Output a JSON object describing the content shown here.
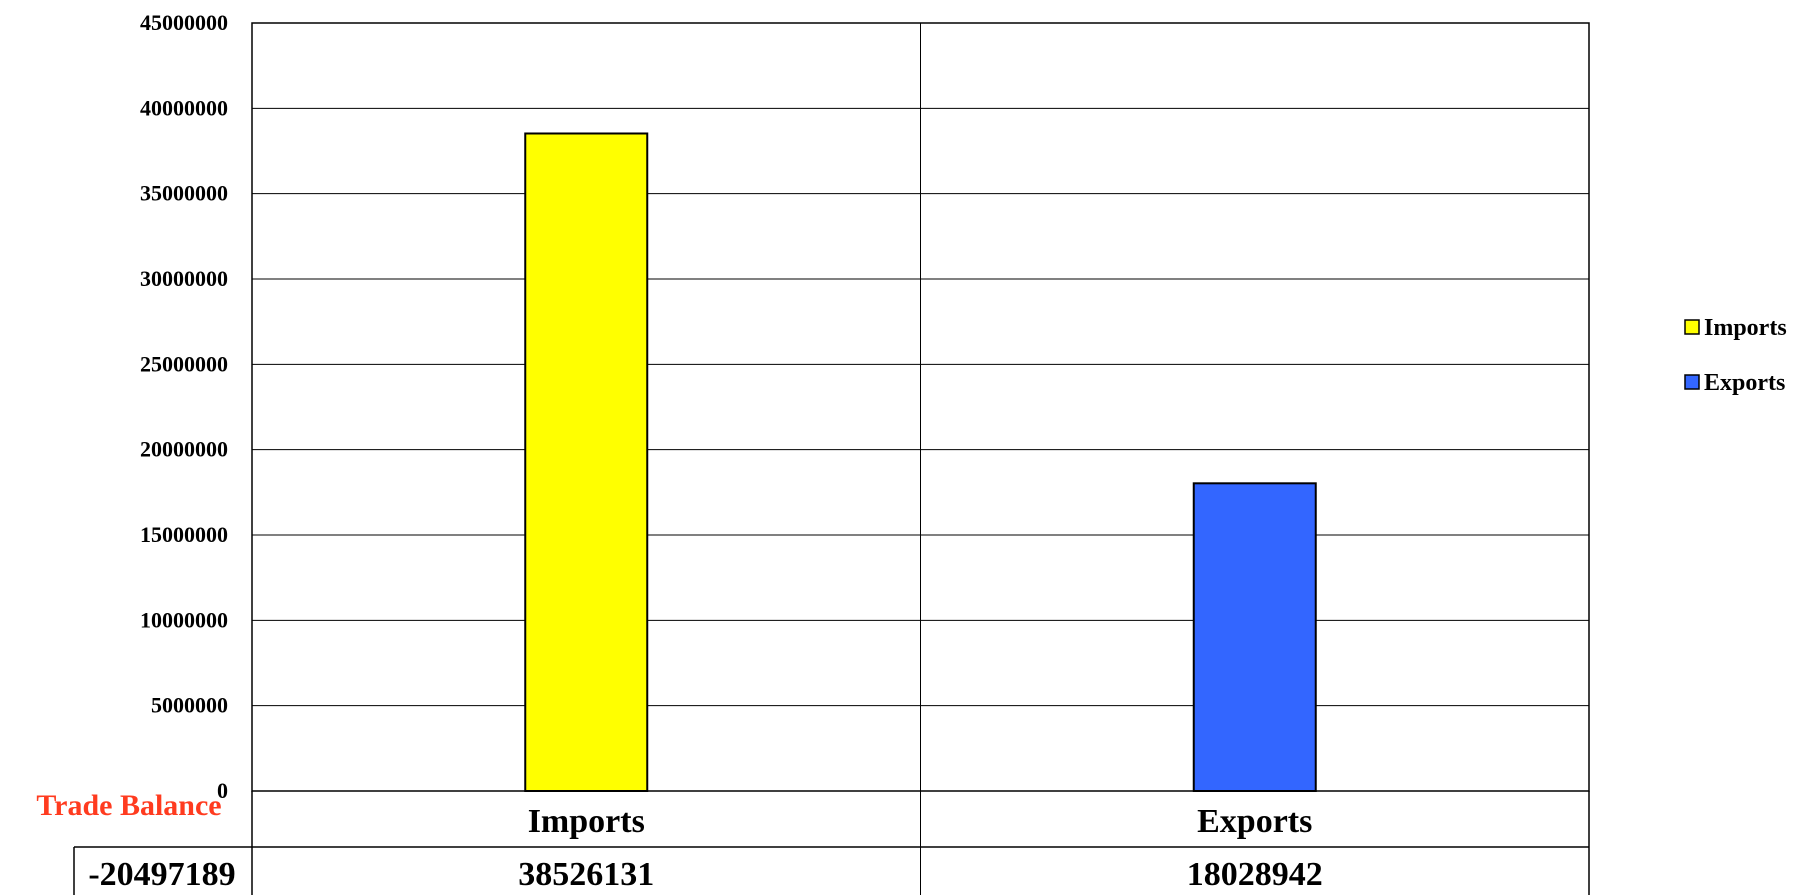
{
  "chart_data": {
    "type": "bar",
    "categories": [
      "Imports",
      "Exports"
    ],
    "series": [
      {
        "name": "Imports",
        "category": "Imports",
        "value": 38526131,
        "color": "#ffff00"
      },
      {
        "name": "Exports",
        "category": "Exports",
        "value": 18028942,
        "color": "#3366ff"
      }
    ],
    "ylim": [
      0,
      45000000
    ],
    "y_ticks": [
      "0",
      "5000000",
      "10000000",
      "15000000",
      "20000000",
      "25000000",
      "30000000",
      "35000000",
      "40000000",
      "45000000"
    ],
    "grid": true,
    "legend": {
      "placement": "right",
      "entries": [
        "Imports",
        "Exports"
      ]
    },
    "data_table": {
      "title": "Trade Balance",
      "balance": "-20497189",
      "values": [
        "38526131",
        "18028942"
      ]
    },
    "title": "",
    "xlabel": "",
    "ylabel": ""
  }
}
